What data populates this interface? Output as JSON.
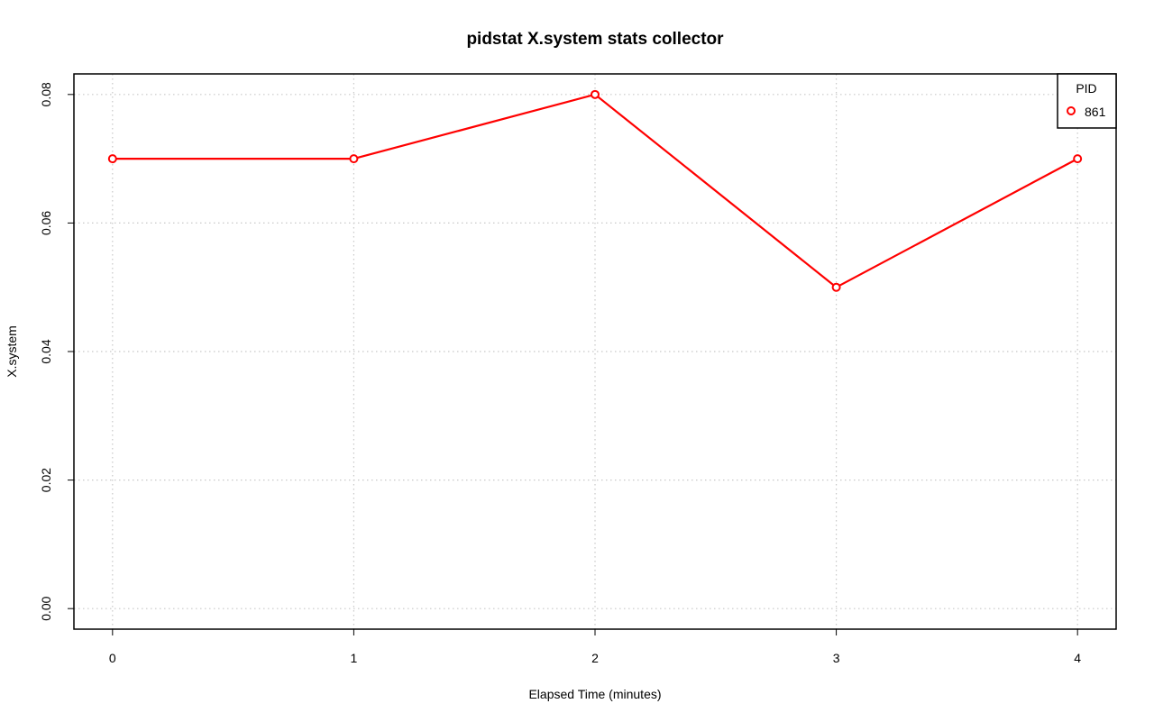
{
  "chart_data": {
    "type": "line",
    "title": "pidstat X.system stats collector",
    "xlabel": "Elapsed Time (minutes)",
    "ylabel": "X.system",
    "x": [
      0,
      1,
      2,
      3,
      4
    ],
    "series": [
      {
        "name": "861",
        "values": [
          0.07,
          0.07,
          0.08,
          0.05,
          0.07
        ],
        "color": "#ff0000"
      }
    ],
    "xticks": [
      "0",
      "1",
      "2",
      "3",
      "4"
    ],
    "yticks": [
      "0.00",
      "0.02",
      "0.04",
      "0.06",
      "0.08"
    ],
    "xlim": [
      -0.16,
      4.16
    ],
    "ylim": [
      -0.0032,
      0.0832
    ],
    "grid": true,
    "legend": {
      "title": "PID",
      "position": "top-right"
    }
  }
}
